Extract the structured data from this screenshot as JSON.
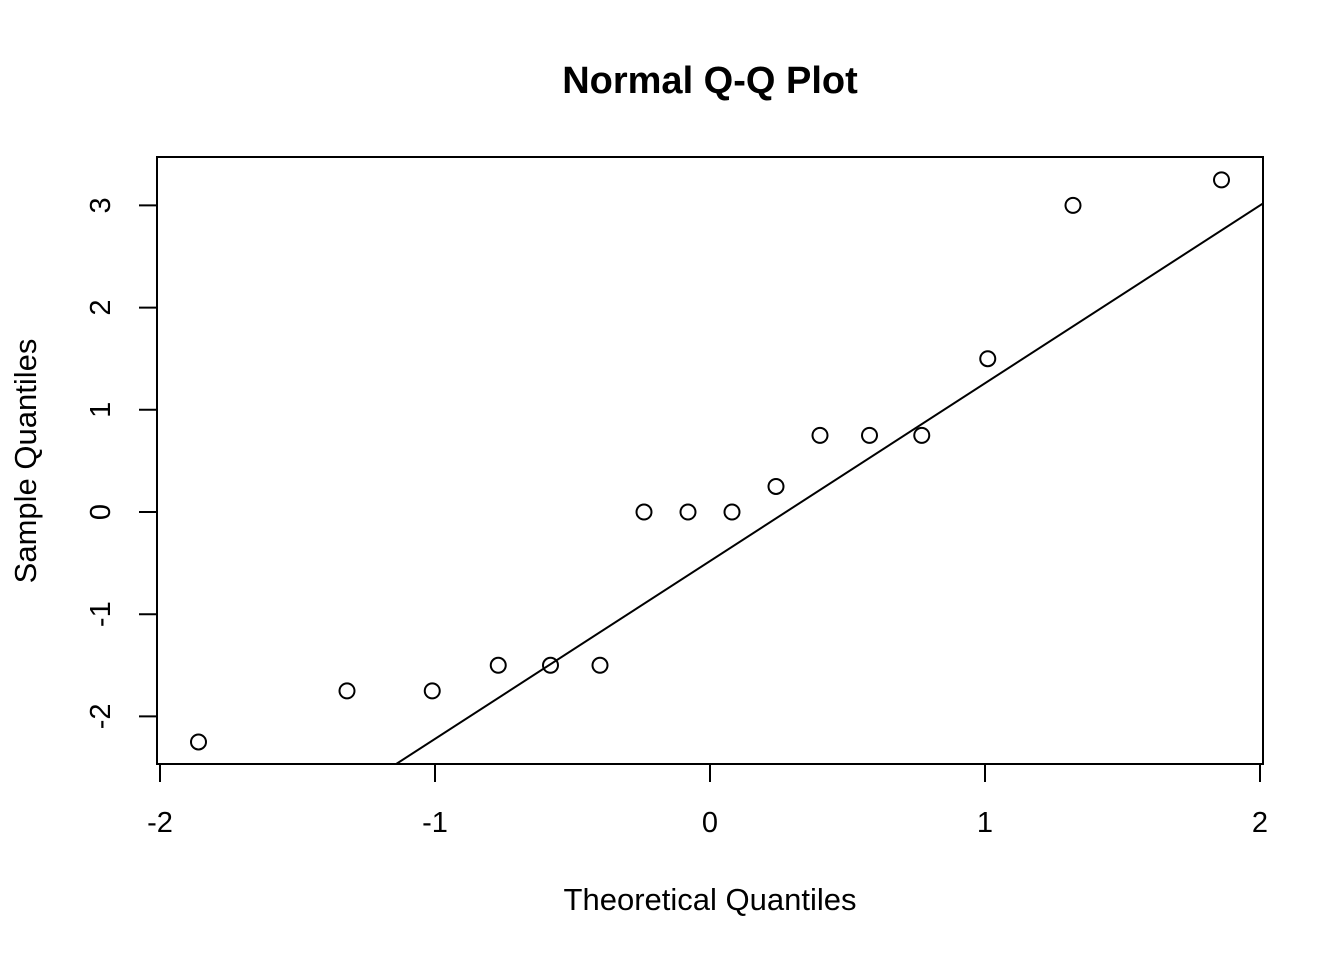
{
  "chart_data": {
    "type": "scatter",
    "title": "Normal Q-Q Plot",
    "xlabel": "Theoretical Quantiles",
    "ylabel": "Sample Quantiles",
    "xlim": [
      -2,
      2
    ],
    "ylim": [
      -2.5,
      3.5
    ],
    "grid": false,
    "xticks": [
      -2,
      -1,
      0,
      1,
      2
    ],
    "xtick_labels": [
      "-2",
      "-1",
      "0",
      "1",
      "2"
    ],
    "yticks": [
      -2,
      -1,
      0,
      1,
      2,
      3
    ],
    "ytick_labels": [
      "-2",
      "-1",
      "0",
      "1",
      "2",
      "3"
    ],
    "series": [
      {
        "marker": "open-circle",
        "points": [
          {
            "x": -1.86,
            "y": -2.25
          },
          {
            "x": -1.32,
            "y": -1.75
          },
          {
            "x": -1.01,
            "y": -1.75
          },
          {
            "x": -0.77,
            "y": -1.5
          },
          {
            "x": -0.58,
            "y": -1.5
          },
          {
            "x": -0.4,
            "y": -1.5
          },
          {
            "x": -0.24,
            "y": 0.0
          },
          {
            "x": -0.08,
            "y": 0.0
          },
          {
            "x": 0.08,
            "y": 0.0
          },
          {
            "x": 0.24,
            "y": 0.25
          },
          {
            "x": 0.4,
            "y": 0.75
          },
          {
            "x": 0.58,
            "y": 0.75
          },
          {
            "x": 0.77,
            "y": 0.75
          },
          {
            "x": 1.01,
            "y": 1.5
          },
          {
            "x": 1.32,
            "y": 3.0
          },
          {
            "x": 1.86,
            "y": 3.25
          }
        ]
      }
    ],
    "reference_line": {
      "intercept": -0.48,
      "slope": 1.74
    },
    "colors": {
      "points": "#000000",
      "line": "#000000",
      "frame": "#000000"
    }
  }
}
